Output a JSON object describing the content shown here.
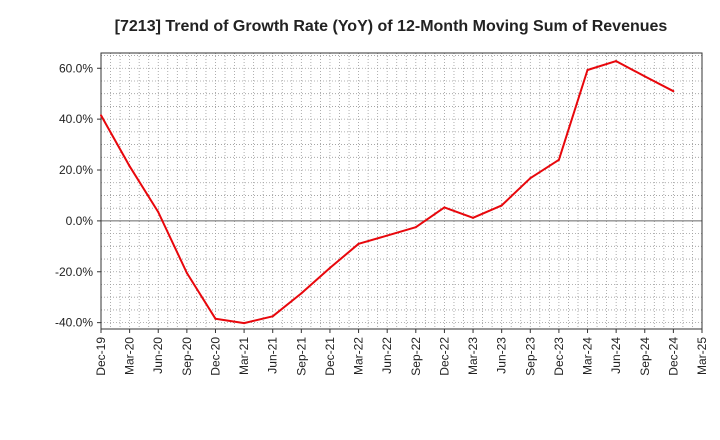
{
  "chart_data": {
    "type": "line",
    "title": "[7213]  Trend of Growth Rate (YoY) of 12-Month Moving Sum of Revenues",
    "xlabel": "",
    "ylabel": "",
    "categories": [
      "Dec-19",
      "Mar-20",
      "Jun-20",
      "Sep-20",
      "Dec-20",
      "Mar-21",
      "Jun-21",
      "Sep-21",
      "Dec-21",
      "Mar-22",
      "Jun-22",
      "Sep-22",
      "Dec-22",
      "Mar-23",
      "Jun-23",
      "Sep-23",
      "Dec-23",
      "Mar-24",
      "Jun-24",
      "Sep-24",
      "Dec-24",
      "Mar-25"
    ],
    "y_tick_labels": [
      "-40.0%",
      "-20.0%",
      "0.0%",
      "20.0%",
      "40.0%",
      "60.0%"
    ],
    "y_ticks": [
      -40,
      -20,
      0,
      20,
      40,
      60
    ],
    "ylim": [
      -42.5,
      66
    ],
    "grid": true,
    "series": [
      {
        "color": "#e8070c",
        "values": [
          41.5,
          21.5,
          3.5,
          -20.5,
          -38.5,
          -40.2,
          -37.5,
          -28.5,
          -18.5,
          -9.0,
          -5.8,
          -2.5,
          5.3,
          1.2,
          6.1,
          16.8,
          24.0,
          59.3,
          62.8,
          56.8,
          51.0,
          null
        ]
      }
    ]
  }
}
